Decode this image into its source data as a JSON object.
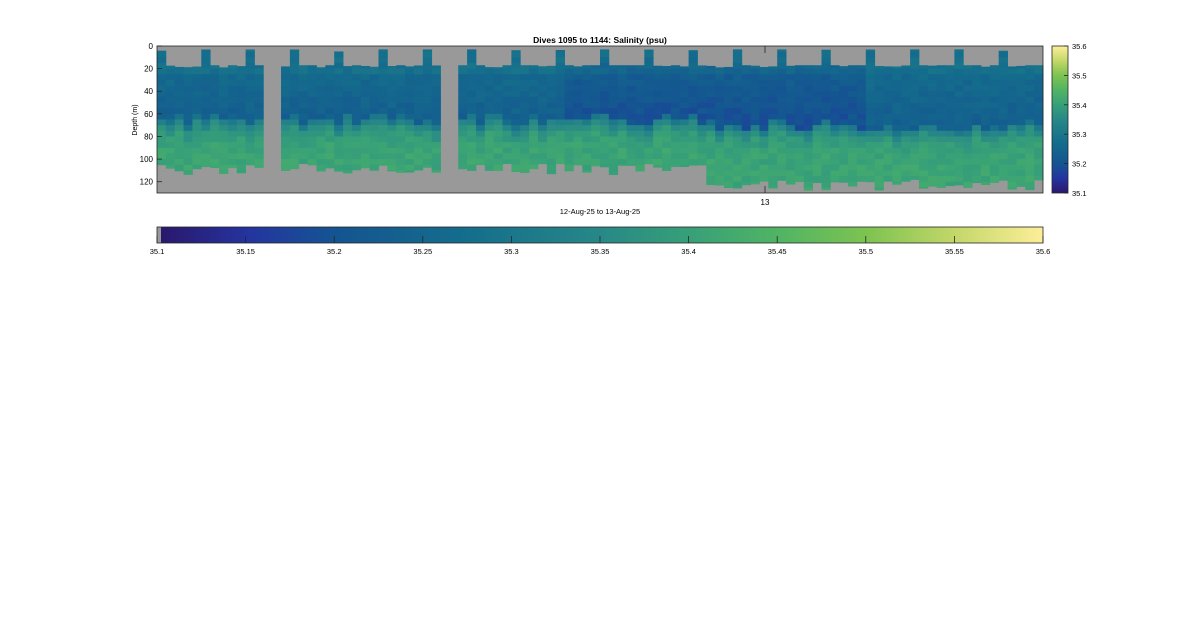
{
  "chart_data": {
    "type": "heatmap",
    "title": "Dives 1095 to 1144: Salinity (psu)",
    "xlabel": "12-Aug-25 to 13-Aug-25",
    "ylabel": "Depth (m)",
    "x_tick_labels": [
      "13"
    ],
    "y_ticks": [
      0,
      20,
      40,
      60,
      80,
      100,
      120
    ],
    "ylim": [
      0,
      130
    ],
    "y_reversed": true,
    "colorbar_vertical_ticks": [
      35.1,
      35.2,
      35.3,
      35.4,
      35.5,
      35.6
    ],
    "colorbar_horizontal_ticks": [
      35.1,
      35.15,
      35.2,
      35.25,
      35.3,
      35.35,
      35.4,
      35.45,
      35.5,
      35.55,
      35.6
    ],
    "clim": [
      35.1,
      35.6
    ],
    "colormap": "haline",
    "no_data_color": "#999999",
    "profile_count": 100,
    "missing_profile_ranges": [
      [
        12,
        13
      ],
      [
        32,
        33
      ]
    ],
    "profile_top_depth_m": 17,
    "surface_layer_salinity": 35.28,
    "mid_layer_salinity": 35.22,
    "bottom_layer_salinity": 35.41,
    "max_depth_first_half_m": 108,
    "max_depth_second_half_m": 122
  }
}
